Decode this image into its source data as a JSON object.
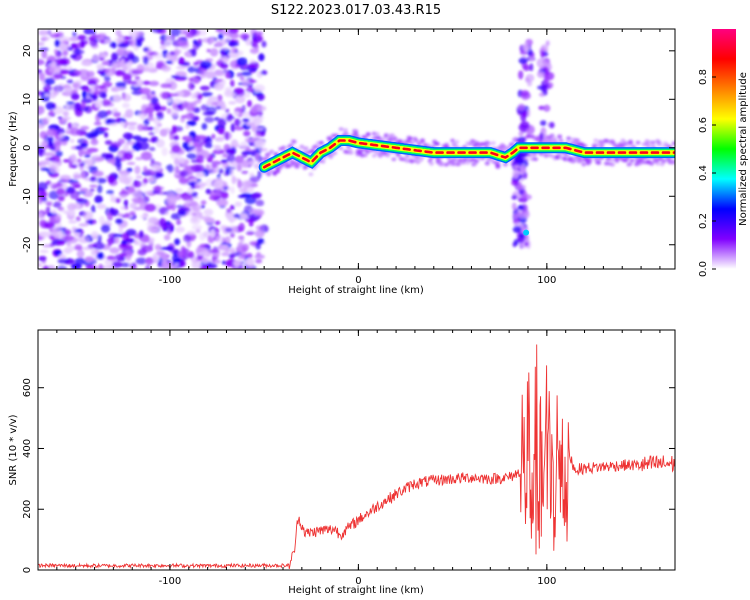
{
  "figure_title": "S122.2023.017.03.43.R15",
  "chart_data": [
    {
      "type": "heatmap",
      "name": "spectrogram",
      "xlabel": "Height of straight line (km)",
      "ylabel": "Frequency (Hz)",
      "xlim": [
        -170,
        168
      ],
      "ylim": [
        -25,
        24.5
      ],
      "xticks": [
        -100,
        0,
        100
      ],
      "yticks": [
        -20,
        -10,
        0,
        10,
        20
      ],
      "colorbar": {
        "label": "Normalized spectral amplitude",
        "range": [
          0,
          1
        ],
        "ticks": [
          0.0,
          0.2,
          0.4,
          0.6,
          0.8
        ],
        "tick_labels": [
          "0.0",
          "0.2",
          "0.4",
          "0.6",
          "0.8"
        ],
        "colormap": [
          "#ffffff",
          "#8000ff",
          "#0000ff",
          "#00ffff",
          "#00ff00",
          "#ffff00",
          "#ff8000",
          "#ff0000",
          "#ff0080"
        ]
      },
      "noise_region_x": [
        -170,
        -50
      ],
      "ridge": {
        "x": [
          -50,
          -45,
          -40,
          -35,
          -30,
          -25,
          -20,
          -15,
          -10,
          -5,
          0,
          10,
          20,
          30,
          40,
          50,
          60,
          70,
          78,
          82,
          85,
          90,
          95,
          100,
          110,
          120,
          130,
          140,
          150,
          160,
          168
        ],
        "y": [
          -4,
          -3,
          -2,
          -1,
          -2,
          -3,
          -1,
          0,
          1.5,
          1.5,
          1,
          0.5,
          0,
          -0.5,
          -1,
          -1,
          -1,
          -1,
          -2,
          -1,
          0,
          0,
          0,
          0,
          0,
          -1,
          -1,
          -1,
          -1,
          -1,
          -1
        ]
      },
      "vertical_feature": {
        "x_range": [
          80,
          105
        ],
        "y_range": [
          -20,
          22
        ]
      }
    },
    {
      "type": "line",
      "name": "snr",
      "xlabel": "Height of straight line (km)",
      "ylabel": "SNR (10 * v/v)",
      "xlim": [
        -170,
        168
      ],
      "ylim": [
        0,
        790
      ],
      "xticks": [
        -100,
        0,
        100
      ],
      "yticks": [
        0,
        200,
        400,
        600
      ],
      "color": "#ee3333",
      "series": [
        {
          "x": [
            -170,
            -140,
            -110,
            -80,
            -50,
            -37,
            -34,
            -32,
            -28,
            -20,
            -12,
            -10,
            -5,
            0,
            10,
            20,
            30,
            40,
            50,
            60,
            70,
            80,
            85,
            90,
            95,
            100,
            105,
            110,
            115,
            120,
            130,
            140,
            150,
            160,
            168
          ],
          "y": [
            15,
            14,
            15,
            14,
            15,
            15,
            60,
            175,
            120,
            130,
            135,
            115,
            140,
            165,
            210,
            250,
            285,
            295,
            300,
            305,
            300,
            305,
            320,
            380,
            330,
            360,
            380,
            410,
            330,
            335,
            340,
            345,
            345,
            350,
            350
          ]
        }
      ],
      "spike_region": {
        "x_range": [
          86,
          112
        ],
        "y_range": [
          20,
          780
        ]
      }
    }
  ]
}
